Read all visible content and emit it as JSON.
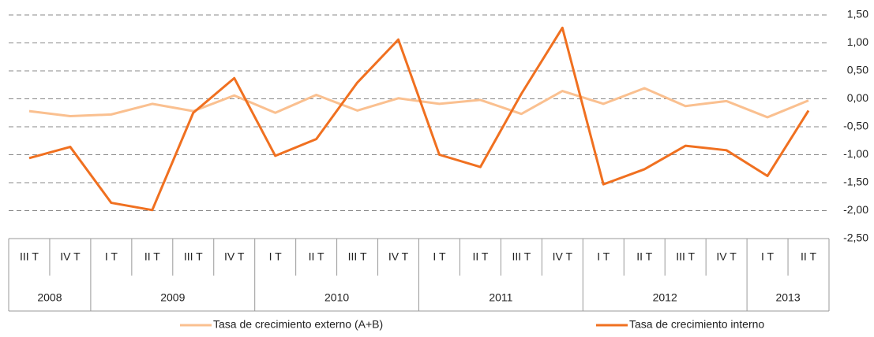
{
  "chart_data": {
    "type": "line",
    "groups": [
      {
        "year": "2008",
        "quarters": [
          "III T",
          "IV T"
        ]
      },
      {
        "year": "2009",
        "quarters": [
          "I T",
          "II T",
          "III T",
          "IV T"
        ]
      },
      {
        "year": "2010",
        "quarters": [
          "I T",
          "II T",
          "III T",
          "IV T"
        ]
      },
      {
        "year": "2011",
        "quarters": [
          "I T",
          "II T",
          "III T",
          "IV T"
        ]
      },
      {
        "year": "2012",
        "quarters": [
          "I T",
          "II T",
          "III T",
          "IV T"
        ]
      },
      {
        "year": "2013",
        "quarters": [
          "I T",
          "II T"
        ]
      }
    ],
    "series": [
      {
        "name": "Tasa de crecimiento externo (A+B)",
        "color": "#fac090",
        "values": [
          -0.22,
          -0.31,
          -0.28,
          -0.09,
          -0.22,
          0.06,
          -0.25,
          0.07,
          -0.21,
          0.01,
          -0.09,
          -0.02,
          -0.27,
          0.14,
          -0.09,
          0.19,
          -0.13,
          -0.04,
          -0.33,
          -0.03
        ]
      },
      {
        "name": "Tasa de crecimiento interno",
        "color": "#f07020",
        "values": [
          -1.06,
          -0.86,
          -1.86,
          -1.99,
          -0.25,
          0.37,
          -1.02,
          -0.72,
          0.29,
          1.06,
          -1.0,
          -1.22,
          0.09,
          1.27,
          -1.53,
          -1.26,
          -0.84,
          -0.92,
          -1.38,
          -0.21
        ]
      }
    ],
    "ylim": [
      -2.5,
      1.5
    ],
    "yticks": [
      {
        "value": 1.5,
        "label": "1,50"
      },
      {
        "value": 1,
        "label": "1,00"
      },
      {
        "value": 0.5,
        "label": "0,50"
      },
      {
        "value": 0,
        "label": "0,00"
      },
      {
        "value": -0.5,
        "label": "-0,50"
      },
      {
        "value": -1,
        "label": "-1,00"
      },
      {
        "value": -1.5,
        "label": "-1,50"
      },
      {
        "value": -2,
        "label": "-2,00"
      },
      {
        "value": -2.5,
        "label": "-2,50"
      }
    ],
    "grid": true
  }
}
